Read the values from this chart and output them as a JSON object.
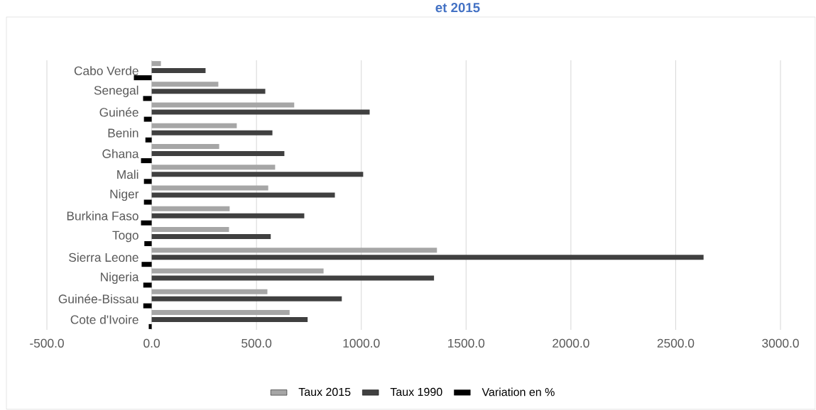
{
  "chart_data": {
    "type": "bar",
    "orientation": "horizontal",
    "title": "et 2015",
    "categories": [
      "Cabo Verde",
      "Senegal",
      "Guinée",
      "Benin",
      "Ghana",
      "Mali",
      "Niger",
      "Burkina Faso",
      "Togo",
      "Sierra Leone",
      "Nigeria",
      "Guinée-Bissau",
      "Cote d'Ivoire"
    ],
    "series": [
      {
        "name": "Taux 2015",
        "color": "#a6a6a6",
        "values": [
          44,
          318,
          680,
          406,
          322,
          589,
          556,
          372,
          369,
          1361,
          820,
          552,
          658
        ]
      },
      {
        "name": "Taux 1990",
        "color": "#404040",
        "values": [
          257,
          542,
          1040,
          576,
          633,
          1009,
          874,
          728,
          568,
          2633,
          1347,
          907,
          744
        ]
      },
      {
        "name": "Variation en %",
        "color": "#000000",
        "values": [
          -85,
          -41,
          -37,
          -30,
          -51,
          -37,
          -37,
          -51,
          -35,
          -48,
          -40,
          -40,
          -14
        ]
      }
    ],
    "xlim": [
      -500,
      3000
    ],
    "xticks": [
      {
        "value": -500,
        "label": "-500.0"
      },
      {
        "value": 0,
        "label": "0.0"
      },
      {
        "value": 500,
        "label": "500.0"
      },
      {
        "value": 1000,
        "label": "1000.0"
      },
      {
        "value": 1500,
        "label": "1500.0"
      },
      {
        "value": 2000,
        "label": "2000.0"
      },
      {
        "value": 2500,
        "label": "2500.0"
      },
      {
        "value": 3000,
        "label": "3000.0"
      }
    ],
    "grid": "x",
    "legend": "bottom"
  }
}
